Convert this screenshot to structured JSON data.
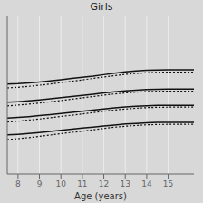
{
  "chart_data": {
    "type": "line",
    "title": "Girls",
    "x_label": "Age (years)",
    "x": [
      7.5,
      8.0,
      8.5,
      9.0,
      9.5,
      10.0,
      10.5,
      11.0,
      11.5,
      12.0,
      12.5,
      13.0,
      13.5,
      14.0,
      14.5,
      15.0,
      15.5,
      16.0,
      16.2
    ],
    "series": [
      {
        "color": "#111111",
        "line_style": "solid",
        "values": [
          0.57,
          0.573,
          0.578,
          0.584,
          0.591,
          0.598,
          0.606,
          0.614,
          0.621,
          0.63,
          0.64,
          0.648,
          0.654,
          0.658,
          0.66,
          0.661,
          0.661,
          0.661,
          0.661
        ]
      },
      {
        "color": "#111111",
        "line_style": "dotted",
        "values": [
          0.546,
          0.55,
          0.556,
          0.563,
          0.571,
          0.58,
          0.588,
          0.597,
          0.606,
          0.615,
          0.624,
          0.632,
          0.638,
          0.642,
          0.645,
          0.646,
          0.646,
          0.646,
          0.646
        ]
      },
      {
        "color": "#111111",
        "line_style": "solid",
        "values": [
          0.455,
          0.459,
          0.464,
          0.47,
          0.477,
          0.484,
          0.491,
          0.499,
          0.506,
          0.514,
          0.521,
          0.527,
          0.532,
          0.536,
          0.538,
          0.539,
          0.539,
          0.539,
          0.539
        ]
      },
      {
        "color": "#111111",
        "line_style": "dotted",
        "values": [
          0.432,
          0.437,
          0.443,
          0.45,
          0.458,
          0.466,
          0.474,
          0.483,
          0.491,
          0.5,
          0.508,
          0.514,
          0.519,
          0.523,
          0.525,
          0.526,
          0.526,
          0.526,
          0.526
        ]
      },
      {
        "color": "#111111",
        "line_style": "solid",
        "values": [
          0.355,
          0.359,
          0.364,
          0.37,
          0.377,
          0.384,
          0.391,
          0.398,
          0.405,
          0.412,
          0.419,
          0.425,
          0.43,
          0.433,
          0.435,
          0.436,
          0.436,
          0.436,
          0.436
        ]
      },
      {
        "color": "#111111",
        "line_style": "dotted",
        "values": [
          0.33,
          0.335,
          0.342,
          0.349,
          0.357,
          0.365,
          0.373,
          0.381,
          0.39,
          0.398,
          0.406,
          0.412,
          0.417,
          0.421,
          0.423,
          0.424,
          0.424,
          0.424,
          0.424
        ]
      },
      {
        "color": "#111111",
        "line_style": "solid",
        "values": [
          0.248,
          0.252,
          0.257,
          0.263,
          0.27,
          0.277,
          0.284,
          0.291,
          0.298,
          0.305,
          0.311,
          0.317,
          0.321,
          0.325,
          0.327,
          0.328,
          0.328,
          0.328,
          0.328
        ]
      },
      {
        "color": "#111111",
        "line_style": "dotted",
        "values": [
          0.218,
          0.224,
          0.231,
          0.239,
          0.247,
          0.256,
          0.264,
          0.272,
          0.281,
          0.289,
          0.297,
          0.303,
          0.308,
          0.312,
          0.314,
          0.315,
          0.315,
          0.315,
          0.315
        ]
      }
    ],
    "xlim": [
      7.5,
      16.2
    ],
    "xticks": [
      8,
      9,
      10,
      11,
      12,
      13,
      14,
      15
    ],
    "ylim": [
      0,
      1
    ],
    "yticks": [
      0,
      0.0125,
      0.025,
      0.0375,
      0.05,
      0.0625,
      0.075,
      0.0875,
      0.1,
      0.1125,
      0.125,
      0.1375,
      0.15,
      0.1625,
      0.175,
      0.1875,
      0.2,
      0.2125,
      0.225,
      0.2375,
      0.25,
      0.2625,
      0.275,
      0.2875,
      0.3,
      0.3125,
      0.325,
      0.3375,
      0.35,
      0.3625,
      0.375,
      0.3875,
      0.4,
      0.4125,
      0.425,
      0.4375,
      0.45,
      0.4625,
      0.475,
      0.4875,
      0.5,
      0.5125,
      0.525,
      0.5375,
      0.55,
      0.5625,
      0.575,
      0.5875,
      0.6,
      0.6125,
      0.625,
      0.6375,
      0.65,
      0.6625,
      0.675,
      0.6875,
      0.7,
      0.7125,
      0.725,
      0.7375,
      0.75,
      0.7625,
      0.775,
      0.7875,
      0.8,
      0.8125,
      0.825,
      0.8375,
      0.85,
      0.8625,
      0.875,
      0.8875,
      0.9,
      0.9125,
      0.925,
      0.9375,
      0.95,
      0.9625,
      0.975,
      0.9875,
      1
    ],
    "grid": true,
    "tick_labels": "x"
  }
}
